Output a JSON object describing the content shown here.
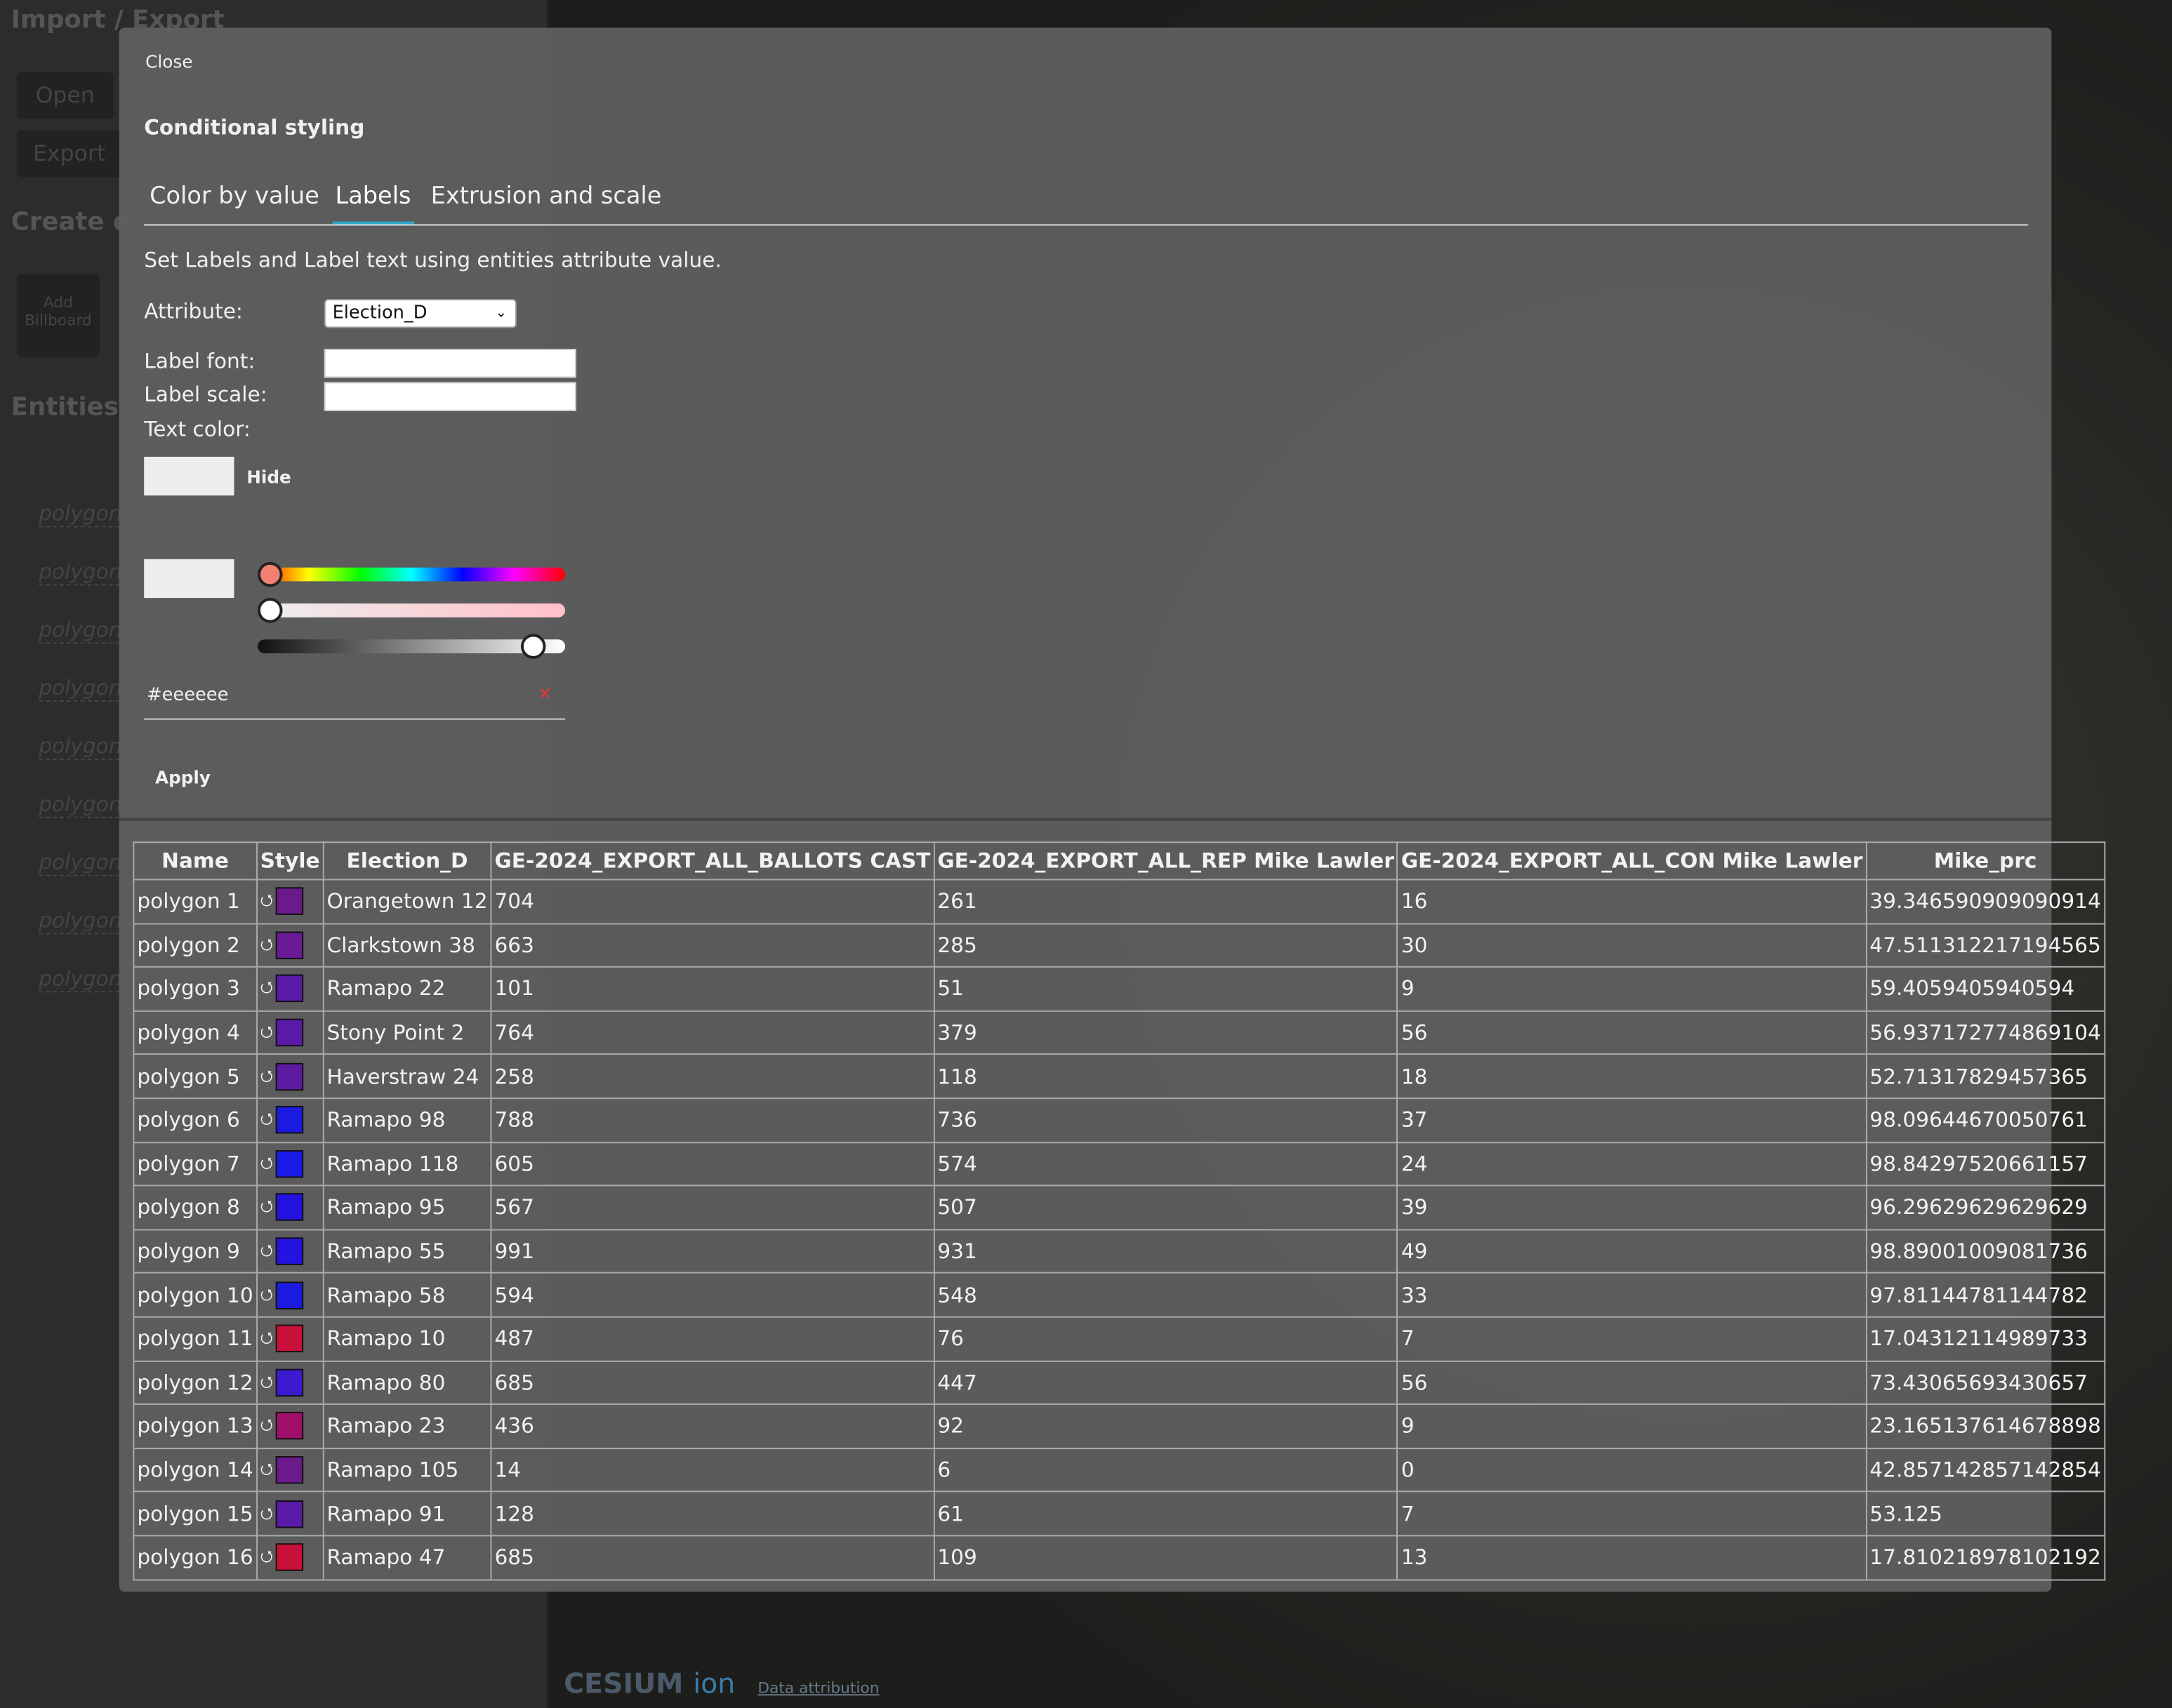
{
  "sidebar": {
    "title": "Import / Export",
    "buttons": [
      "Open",
      "Export"
    ],
    "create": "Create e",
    "add_billboard": "Add Billboard",
    "entities": "Entities",
    "items": [
      "polygon",
      "polygon",
      "polygon",
      "polygon",
      "polygon",
      "polygon",
      "polygon",
      "polygon",
      "polygon"
    ]
  },
  "modal": {
    "close": "Close",
    "title": "Conditional styling",
    "tabs": [
      "Color by value",
      "Labels",
      "Extrusion and scale"
    ],
    "active_tab": 1,
    "description": "Set Labels and Label text using entities attribute value.",
    "attribute_label": "Attribute:",
    "attribute_value": "Election_D",
    "label_font": "Label font:",
    "label_scale": "Label scale:",
    "text_color": "Text color:",
    "hide": "Hide",
    "hex": "#eeeeee",
    "apply": "Apply"
  },
  "table": {
    "headers": [
      "Name",
      "Style",
      "Election_D",
      "GE-2024_EXPORT_ALL_BALLOTS CAST",
      "GE-2024_EXPORT_ALL_REP Mike Lawler",
      "GE-2024_EXPORT_ALL_CON Mike Lawler",
      "Mike_prc"
    ],
    "rows": [
      [
        "polygon 1",
        "Orangetown 12",
        "704",
        "261",
        "16",
        "39.346590909090914"
      ],
      [
        "polygon 2",
        "Clarkstown 38",
        "663",
        "285",
        "30",
        "47.511312217194565"
      ],
      [
        "polygon 3",
        "Ramapo 22",
        "101",
        "51",
        "9",
        "59.4059405940594"
      ],
      [
        "polygon 4",
        "Stony Point 2",
        "764",
        "379",
        "56",
        "56.937172774869104"
      ],
      [
        "polygon 5",
        "Haverstraw 24",
        "258",
        "118",
        "18",
        "52.71317829457365"
      ],
      [
        "polygon 6",
        "Ramapo 98",
        "788",
        "736",
        "37",
        "98.09644670050761"
      ],
      [
        "polygon 7",
        "Ramapo 118",
        "605",
        "574",
        "24",
        "98.84297520661157"
      ],
      [
        "polygon 8",
        "Ramapo 95",
        "567",
        "507",
        "39",
        "96.29629629629629"
      ],
      [
        "polygon 9",
        "Ramapo 55",
        "991",
        "931",
        "49",
        "98.89001009081736"
      ],
      [
        "polygon 10",
        "Ramapo 58",
        "594",
        "548",
        "33",
        "97.81144781144782"
      ],
      [
        "polygon 11",
        "Ramapo 10",
        "487",
        "76",
        "7",
        "17.04312114989733"
      ],
      [
        "polygon 12",
        "Ramapo 80",
        "685",
        "447",
        "56",
        "73.43065693430657"
      ],
      [
        "polygon 13",
        "Ramapo 23",
        "436",
        "92",
        "9",
        "23.165137614678898"
      ],
      [
        "polygon 14",
        "Ramapo 105",
        "14",
        "6",
        "0",
        "42.857142857142854"
      ],
      [
        "polygon 15",
        "Ramapo 91",
        "128",
        "61",
        "7",
        "53.125"
      ],
      [
        "polygon 16",
        "Ramapo 47",
        "685",
        "109",
        "13",
        "17.810218978102192"
      ]
    ],
    "style_colors": [
      "#6b1a8c",
      "#6b1a96",
      "#5a1aa8",
      "#5a1aa8",
      "#5e1aa0",
      "#1a1ae0",
      "#1a1ae8",
      "#2412e0",
      "#2412e0",
      "#1a1ae0",
      "#c8103a",
      "#3c1ad0",
      "#a0106a",
      "#6b1a8c",
      "#5a1aa8",
      "#c8103a"
    ]
  },
  "footer": {
    "brand": "CESIUM",
    "ion": "ion",
    "attribution": "Data attribution"
  }
}
